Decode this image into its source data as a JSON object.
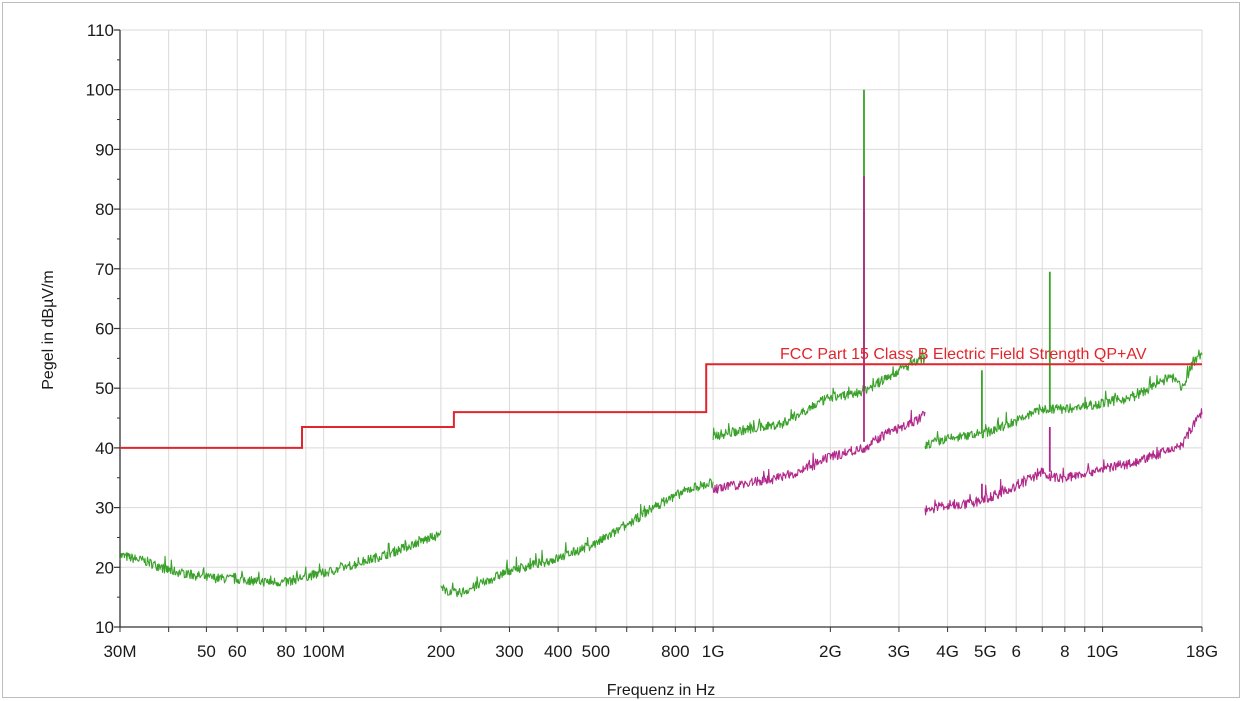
{
  "chart_data": {
    "type": "line",
    "title": "",
    "xlabel": "Frequenz in Hz",
    "ylabel": "Pegel in dBµV/m",
    "x_scale": "log",
    "xlim": [
      "30M",
      "18G"
    ],
    "ylim": [
      10,
      110
    ],
    "grid": true,
    "y_ticks": [
      10,
      20,
      30,
      40,
      50,
      60,
      70,
      80,
      90,
      100,
      110
    ],
    "x_tick_labels": [
      {
        "label": "30M",
        "hz": 30000000
      },
      {
        "label": "50",
        "hz": 50000000
      },
      {
        "label": "60",
        "hz": 60000000
      },
      {
        "label": "80",
        "hz": 80000000
      },
      {
        "label": "100M",
        "hz": 100000000
      },
      {
        "label": "200",
        "hz": 200000000
      },
      {
        "label": "300",
        "hz": 300000000
      },
      {
        "label": "400",
        "hz": 400000000
      },
      {
        "label": "500",
        "hz": 500000000
      },
      {
        "label": "800",
        "hz": 800000000
      },
      {
        "label": "1G",
        "hz": 1000000000
      },
      {
        "label": "2G",
        "hz": 2000000000
      },
      {
        "label": "3G",
        "hz": 3000000000
      },
      {
        "label": "4G",
        "hz": 4000000000
      },
      {
        "label": "5G",
        "hz": 5000000000
      },
      {
        "label": "6",
        "hz": 6000000000
      },
      {
        "label": "8",
        "hz": 8000000000
      },
      {
        "label": "10G",
        "hz": 10000000000
      },
      {
        "label": "18G",
        "hz": 18000000000
      }
    ],
    "limit_line": {
      "label": "FCC Part 15 Class B Electric Field Strength QP+AV",
      "color": "#e0262c",
      "points": [
        [
          30000000,
          40
        ],
        [
          88000000,
          40
        ],
        [
          88000000,
          43.5
        ],
        [
          216000000,
          43.5
        ],
        [
          216000000,
          46
        ],
        [
          960000000,
          46
        ],
        [
          960000000,
          54
        ],
        [
          18000000000,
          54
        ]
      ]
    },
    "series": [
      {
        "color": "#3aa12a",
        "segments": [
          [
            [
              30000000,
              22
            ],
            [
              35000000,
              21
            ],
            [
              40000000,
              19.5
            ],
            [
              50000000,
              18.3
            ],
            [
              60000000,
              18
            ],
            [
              70000000,
              17.6
            ],
            [
              80000000,
              17.5
            ],
            [
              90000000,
              18.5
            ],
            [
              100000000,
              19
            ],
            [
              120000000,
              20.5
            ],
            [
              150000000,
              22.5
            ],
            [
              180000000,
              24.5
            ],
            [
              200000000,
              25.5
            ]
          ],
          [
            [
              200000000,
              16.5
            ],
            [
              220000000,
              15.5
            ],
            [
              250000000,
              17
            ],
            [
              300000000,
              19.5
            ],
            [
              350000000,
              20.5
            ],
            [
              400000000,
              21.5
            ],
            [
              500000000,
              24
            ],
            [
              600000000,
              27
            ],
            [
              700000000,
              30
            ],
            [
              800000000,
              32
            ],
            [
              900000000,
              33.5
            ],
            [
              1000000000,
              34
            ]
          ],
          [
            [
              1000000000,
              42
            ],
            [
              1200000000,
              43
            ],
            [
              1500000000,
              44
            ],
            [
              1800000000,
              47
            ],
            [
              2000000000,
              48.5
            ],
            [
              2300000000,
              49
            ],
            [
              2600000000,
              50.5
            ],
            [
              3000000000,
              53
            ],
            [
              3500000000,
              55
            ]
          ],
          [
            [
              3500000000,
              40.5
            ],
            [
              4000000000,
              41.5
            ],
            [
              4500000000,
              42
            ],
            [
              5000000000,
              42.5
            ],
            [
              5500000000,
              43.5
            ],
            [
              6000000000,
              44.5
            ],
            [
              7000000000,
              46.5
            ],
            [
              8000000000,
              46.5
            ],
            [
              10000000000,
              47.5
            ],
            [
              12000000000,
              48.5
            ],
            [
              15000000000,
              52
            ],
            [
              16000000000,
              50
            ],
            [
              17000000000,
              54
            ],
            [
              18000000000,
              56
            ]
          ]
        ],
        "spikes": [
          {
            "hz": 2440000000,
            "base": 49.5,
            "top": 100
          },
          {
            "hz": 4900000000,
            "base": 42.5,
            "top": 53
          },
          {
            "hz": 7320000000,
            "base": 46,
            "top": 69.5
          }
        ]
      },
      {
        "color": "#b0288a",
        "segments": [
          [
            [
              1000000000,
              33
            ],
            [
              1200000000,
              34
            ],
            [
              1500000000,
              35
            ],
            [
              1800000000,
              37
            ],
            [
              2000000000,
              38.5
            ],
            [
              2440000000,
              40
            ],
            [
              2800000000,
              42.5
            ],
            [
              3200000000,
              44
            ],
            [
              3500000000,
              45.5
            ]
          ],
          [
            [
              3500000000,
              29.5
            ],
            [
              4000000000,
              30.5
            ],
            [
              4500000000,
              30.5
            ],
            [
              5000000000,
              31.5
            ],
            [
              5500000000,
              32.5
            ],
            [
              6000000000,
              33.5
            ],
            [
              7000000000,
              36
            ],
            [
              7300000000,
              35
            ],
            [
              8000000000,
              35
            ],
            [
              10000000000,
              36.5
            ],
            [
              12000000000,
              37.5
            ],
            [
              14000000000,
              39
            ],
            [
              16000000000,
              40.5
            ],
            [
              17000000000,
              43.5
            ],
            [
              18000000000,
              46
            ]
          ]
        ],
        "spikes": [
          {
            "hz": 2440000000,
            "base": 41,
            "top": 85.5
          },
          {
            "hz": 4900000000,
            "base": 31.5,
            "top": 34
          },
          {
            "hz": 7320000000,
            "base": 36,
            "top": 43.5
          }
        ]
      }
    ]
  }
}
